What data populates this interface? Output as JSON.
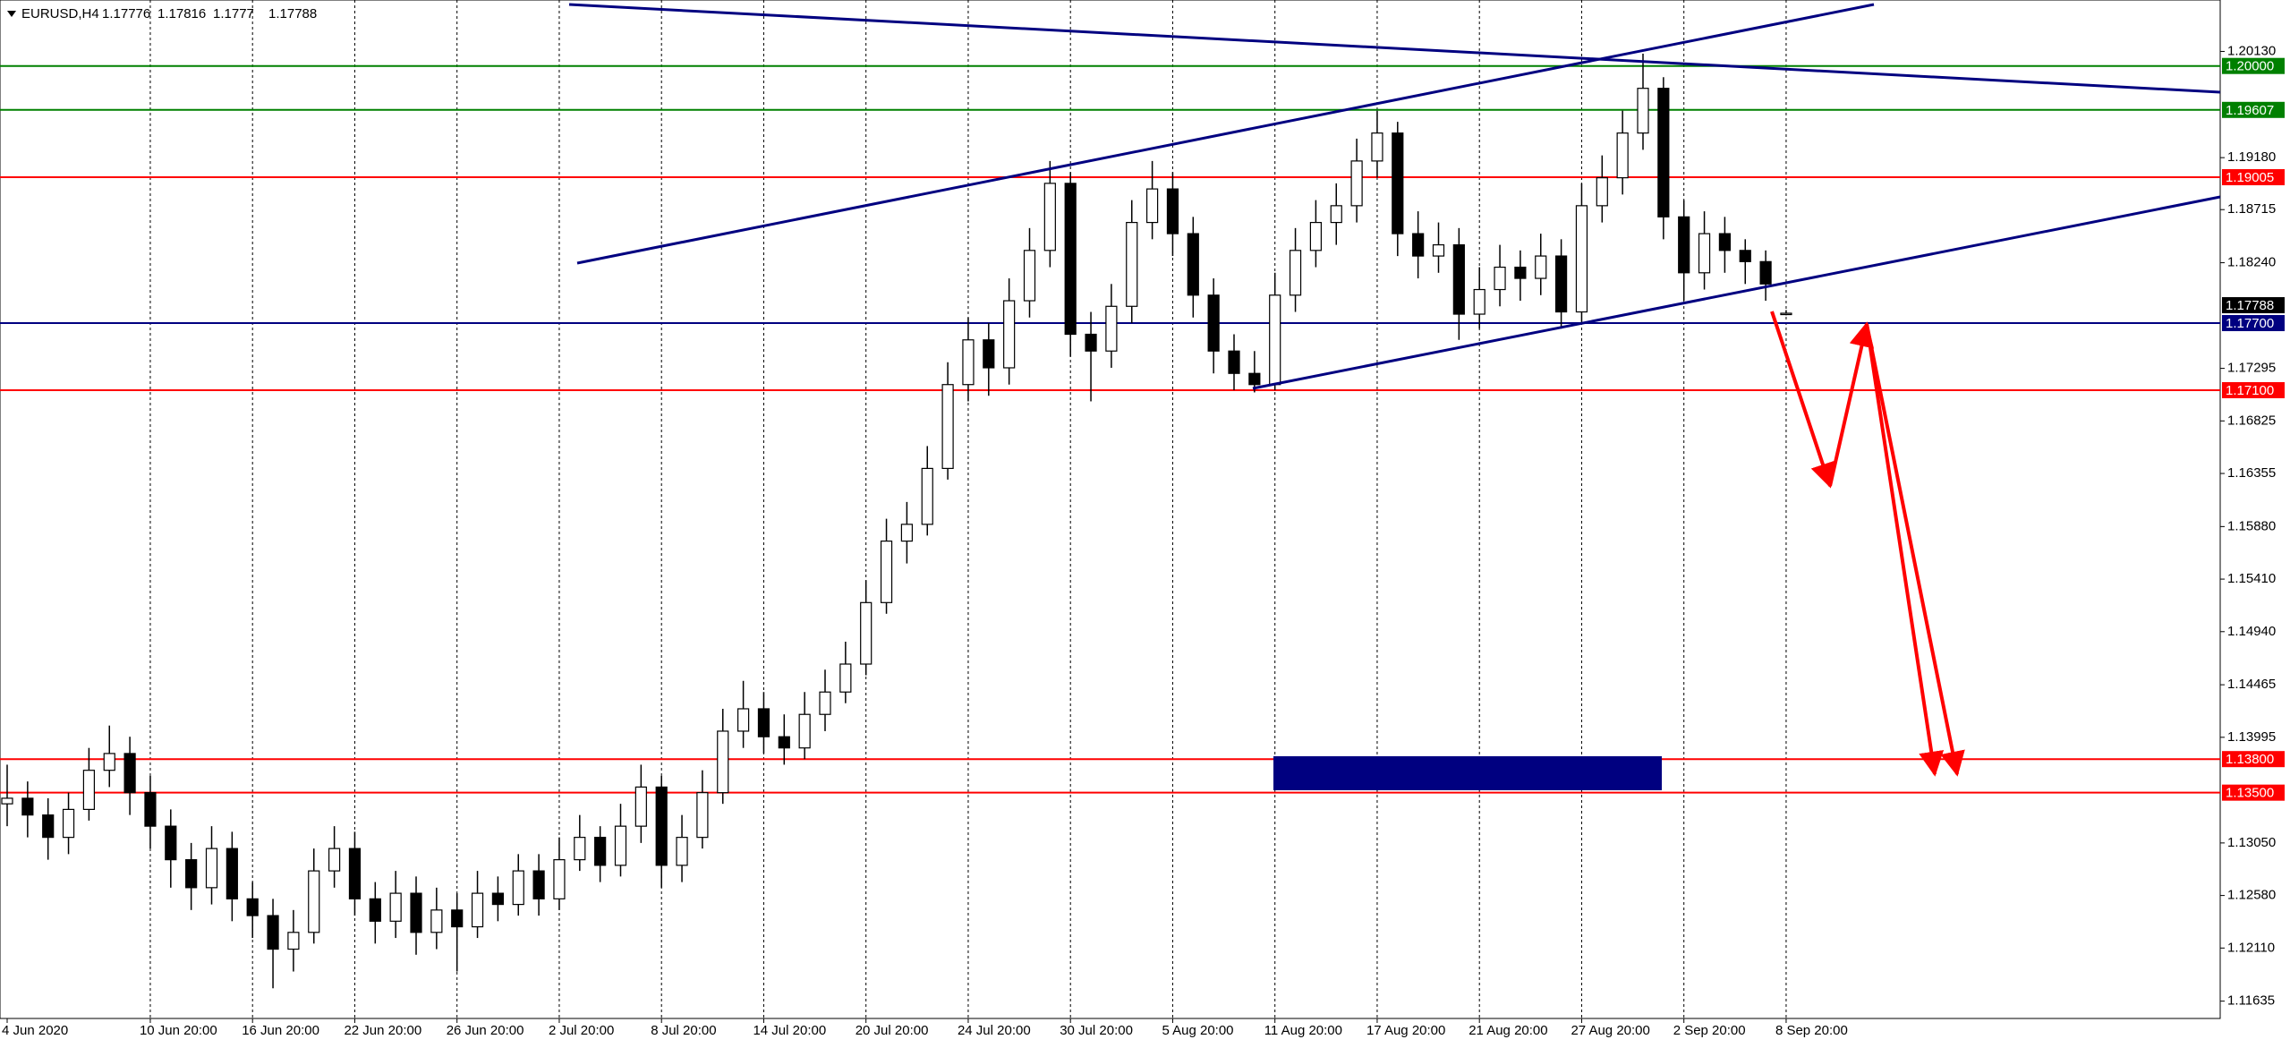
{
  "chart_data": {
    "type": "candlestick",
    "symbol": "EURUSD,H4",
    "categories": [
      "4 Jun 2020",
      null,
      null,
      null,
      null,
      null,
      null,
      "10 Jun 20:00",
      null,
      null,
      null,
      null,
      "16 Jun 20:00",
      null,
      null,
      null,
      null,
      "22 Jun 20:00",
      null,
      null,
      null,
      null,
      "26 Jun 20:00",
      null,
      null,
      null,
      null,
      "2 Jul 20:00",
      null,
      null,
      null,
      null,
      "8 Jul 20:00",
      null,
      null,
      null,
      null,
      "14 Jul 20:00",
      null,
      null,
      null,
      null,
      "20 Jul 20:00",
      null,
      null,
      null,
      null,
      "24 Jul 20:00",
      null,
      null,
      null,
      null,
      "30 Jul 20:00",
      null,
      null,
      null,
      null,
      "5 Aug 20:00",
      null,
      null,
      null,
      null,
      "11 Aug 20:00",
      null,
      null,
      null,
      null,
      "17 Aug 20:00",
      null,
      null,
      null,
      null,
      "21 Aug 20:00",
      null,
      null,
      null,
      null,
      "27 Aug 20:00",
      null,
      null,
      null,
      null,
      "2 Sep 20:00",
      null,
      null,
      null,
      null,
      "8 Sep 20:00"
    ],
    "open": [
      1.134,
      1.1345,
      1.133,
      1.131,
      1.1335,
      1.137,
      1.1385,
      1.135,
      1.132,
      1.129,
      1.1265,
      1.13,
      1.1255,
      1.124,
      1.121,
      1.1225,
      1.128,
      1.13,
      1.1255,
      1.1235,
      1.126,
      1.1225,
      1.1245,
      1.123,
      1.126,
      1.125,
      1.128,
      1.1255,
      1.129,
      1.131,
      1.1285,
      1.132,
      1.1355,
      1.1285,
      1.131,
      1.135,
      1.1405,
      1.1425,
      1.14,
      1.139,
      1.142,
      1.144,
      1.1465,
      1.152,
      1.1575,
      1.159,
      1.164,
      1.1715,
      1.1755,
      1.173,
      1.179,
      1.1835,
      1.1895,
      1.176,
      1.1745,
      1.1785,
      1.186,
      1.189,
      1.185,
      1.1795,
      1.1745,
      1.1725,
      1.1715,
      1.1795,
      1.1835,
      1.186,
      1.1875,
      1.1915,
      1.194,
      1.185,
      1.183,
      1.184,
      1.1778,
      1.18,
      1.182,
      1.181,
      1.183,
      1.178,
      1.1875,
      1.19,
      1.194,
      1.198,
      1.1865,
      1.1815,
      1.185,
      1.1835,
      1.1825,
      1.17776
    ],
    "high": [
      1.1375,
      1.136,
      1.1345,
      1.135,
      1.139,
      1.141,
      1.14,
      1.1365,
      1.1335,
      1.1305,
      1.132,
      1.1315,
      1.127,
      1.1255,
      1.1245,
      1.13,
      1.132,
      1.1315,
      1.127,
      1.128,
      1.1275,
      1.1265,
      1.126,
      1.128,
      1.1275,
      1.1295,
      1.1295,
      1.131,
      1.133,
      1.132,
      1.134,
      1.1375,
      1.1365,
      1.133,
      1.137,
      1.1425,
      1.145,
      1.144,
      1.142,
      1.144,
      1.146,
      1.1485,
      1.154,
      1.1595,
      1.161,
      1.166,
      1.1735,
      1.1775,
      1.177,
      1.181,
      1.1855,
      1.1915,
      1.1905,
      1.178,
      1.1805,
      1.188,
      1.1915,
      1.1905,
      1.1865,
      1.181,
      1.176,
      1.1745,
      1.1815,
      1.1855,
      1.188,
      1.1895,
      1.1935,
      1.196,
      1.195,
      1.187,
      1.186,
      1.1855,
      1.182,
      1.184,
      1.1835,
      1.185,
      1.1845,
      1.1895,
      1.192,
      1.196,
      1.2011,
      1.199,
      1.188,
      1.187,
      1.1865,
      1.1845,
      1.1835,
      1.17816
    ],
    "low": [
      1.132,
      1.131,
      1.129,
      1.1295,
      1.1325,
      1.1355,
      1.133,
      1.13,
      1.1265,
      1.1245,
      1.125,
      1.1235,
      1.122,
      1.1175,
      1.119,
      1.1215,
      1.1265,
      1.124,
      1.1215,
      1.122,
      1.1205,
      1.121,
      1.119,
      1.122,
      1.1235,
      1.124,
      1.124,
      1.1245,
      1.128,
      1.127,
      1.1275,
      1.1305,
      1.1265,
      1.127,
      1.13,
      1.134,
      1.139,
      1.1385,
      1.1375,
      1.138,
      1.1405,
      1.143,
      1.1455,
      1.151,
      1.1555,
      1.158,
      1.163,
      1.17,
      1.1705,
      1.1715,
      1.1775,
      1.182,
      1.174,
      1.17,
      1.173,
      1.177,
      1.1845,
      1.183,
      1.1775,
      1.1725,
      1.171,
      1.1708,
      1.171,
      1.178,
      1.182,
      1.184,
      1.186,
      1.19,
      1.183,
      1.181,
      1.1815,
      1.1755,
      1.1765,
      1.1785,
      1.179,
      1.1795,
      1.1765,
      1.177,
      1.186,
      1.1885,
      1.1925,
      1.1845,
      1.179,
      1.18,
      1.1815,
      1.1805,
      1.179,
      1.1777
    ],
    "close": [
      1.1345,
      1.133,
      1.131,
      1.1335,
      1.137,
      1.1385,
      1.135,
      1.132,
      1.129,
      1.1265,
      1.13,
      1.1255,
      1.124,
      1.121,
      1.1225,
      1.128,
      1.13,
      1.1255,
      1.1235,
      1.126,
      1.1225,
      1.1245,
      1.123,
      1.126,
      1.125,
      1.128,
      1.1255,
      1.129,
      1.131,
      1.1285,
      1.132,
      1.1355,
      1.1285,
      1.131,
      1.135,
      1.1405,
      1.1425,
      1.14,
      1.139,
      1.142,
      1.144,
      1.1465,
      1.152,
      1.1575,
      1.159,
      1.164,
      1.1715,
      1.1755,
      1.173,
      1.179,
      1.1835,
      1.1895,
      1.176,
      1.1745,
      1.1785,
      1.186,
      1.189,
      1.185,
      1.1795,
      1.1745,
      1.1725,
      1.1715,
      1.1795,
      1.1835,
      1.186,
      1.1875,
      1.1915,
      1.194,
      1.185,
      1.183,
      1.184,
      1.1778,
      1.18,
      1.182,
      1.181,
      1.183,
      1.178,
      1.1875,
      1.19,
      1.194,
      1.198,
      1.1865,
      1.1815,
      1.185,
      1.1835,
      1.1825,
      1.1805,
      1.17788
    ],
    "ylim": [
      1.1148,
      1.2055
    ],
    "yticks": [
      {
        "value": 1.2013,
        "label": "1.20130"
      },
      {
        "value": 1.1918,
        "label": "1.19180"
      },
      1.18715,
      {
        "value": 1.1824,
        "label": "1.18240"
      },
      1.17295,
      1.16825,
      1.16355,
      {
        "value": 1.1588,
        "label": "1.15880"
      },
      {
        "value": 1.1541,
        "label": "1.15410"
      },
      {
        "value": 1.1494,
        "label": "1.14940"
      },
      1.14465,
      1.13995,
      {
        "value": 1.1305,
        "label": "1.13050"
      },
      {
        "value": 1.1258,
        "label": "1.12580"
      },
      {
        "value": 1.1211,
        "label": "1.12110"
      },
      1.11635
    ],
    "levels": [
      {
        "value": 1.2,
        "label": "1.20000",
        "color": "#008000"
      },
      {
        "value": 1.19607,
        "label": "1.19607",
        "color": "#008000"
      },
      {
        "value": 1.19005,
        "label": "1.19005",
        "color": "#ff0000"
      },
      {
        "value": 1.177,
        "label": "1.17700",
        "color": "#000080"
      },
      {
        "value": 1.171,
        "label": "1.17100",
        "color": "#ff0000"
      },
      {
        "value": 1.138,
        "label": "1.13800",
        "color": "#ff0000"
      },
      {
        "value": 1.135,
        "label": "1.13500",
        "color": "#ff0000"
      }
    ],
    "grid": true
  }
}
